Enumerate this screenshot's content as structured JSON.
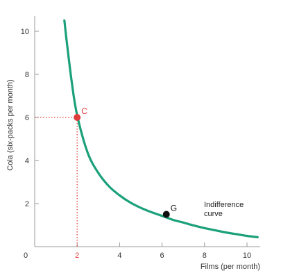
{
  "chart_data": {
    "type": "line",
    "xlabel": "Films (per month)",
    "ylabel": "Cola (six-packs per month)",
    "xlim": [
      0,
      10.5
    ],
    "ylim": [
      0,
      10.5
    ],
    "x_ticks": [
      "0",
      "2",
      "4",
      "6",
      "8",
      "10"
    ],
    "y_ticks": [
      "2",
      "4",
      "6",
      "8",
      "10"
    ],
    "grid": false,
    "series": [
      {
        "name": "Indifference curve",
        "color": "#1aa07a",
        "x": [
          1.4,
          1.5,
          1.75,
          2,
          2.5,
          3,
          3.5,
          4,
          4.5,
          5,
          5.5,
          6,
          6.5,
          7,
          7.5,
          8,
          8.5,
          9,
          9.5,
          10,
          10.5
        ],
        "y": [
          10.5,
          9.6,
          7.6,
          6.1,
          4.35,
          3.42,
          2.8,
          2.38,
          2.05,
          1.8,
          1.6,
          1.43,
          1.25,
          1.12,
          0.98,
          0.86,
          0.76,
          0.66,
          0.58,
          0.5,
          0.44
        ]
      }
    ],
    "points": [
      {
        "label": "C",
        "x": 2,
        "y": 6,
        "color": "#e03c3c",
        "label_color": "#e03c3c"
      },
      {
        "label": "G",
        "x": 6.2,
        "y": 1.5,
        "color": "#111111",
        "label_color": "#111111"
      }
    ],
    "guides": {
      "point": "C",
      "color": "#e03c3c",
      "style": "dotted"
    },
    "highlight_tick": {
      "axis": "x",
      "value": "2",
      "color": "#e03c3c"
    },
    "annotation": {
      "lines": [
        "Indifference",
        "curve"
      ]
    }
  }
}
